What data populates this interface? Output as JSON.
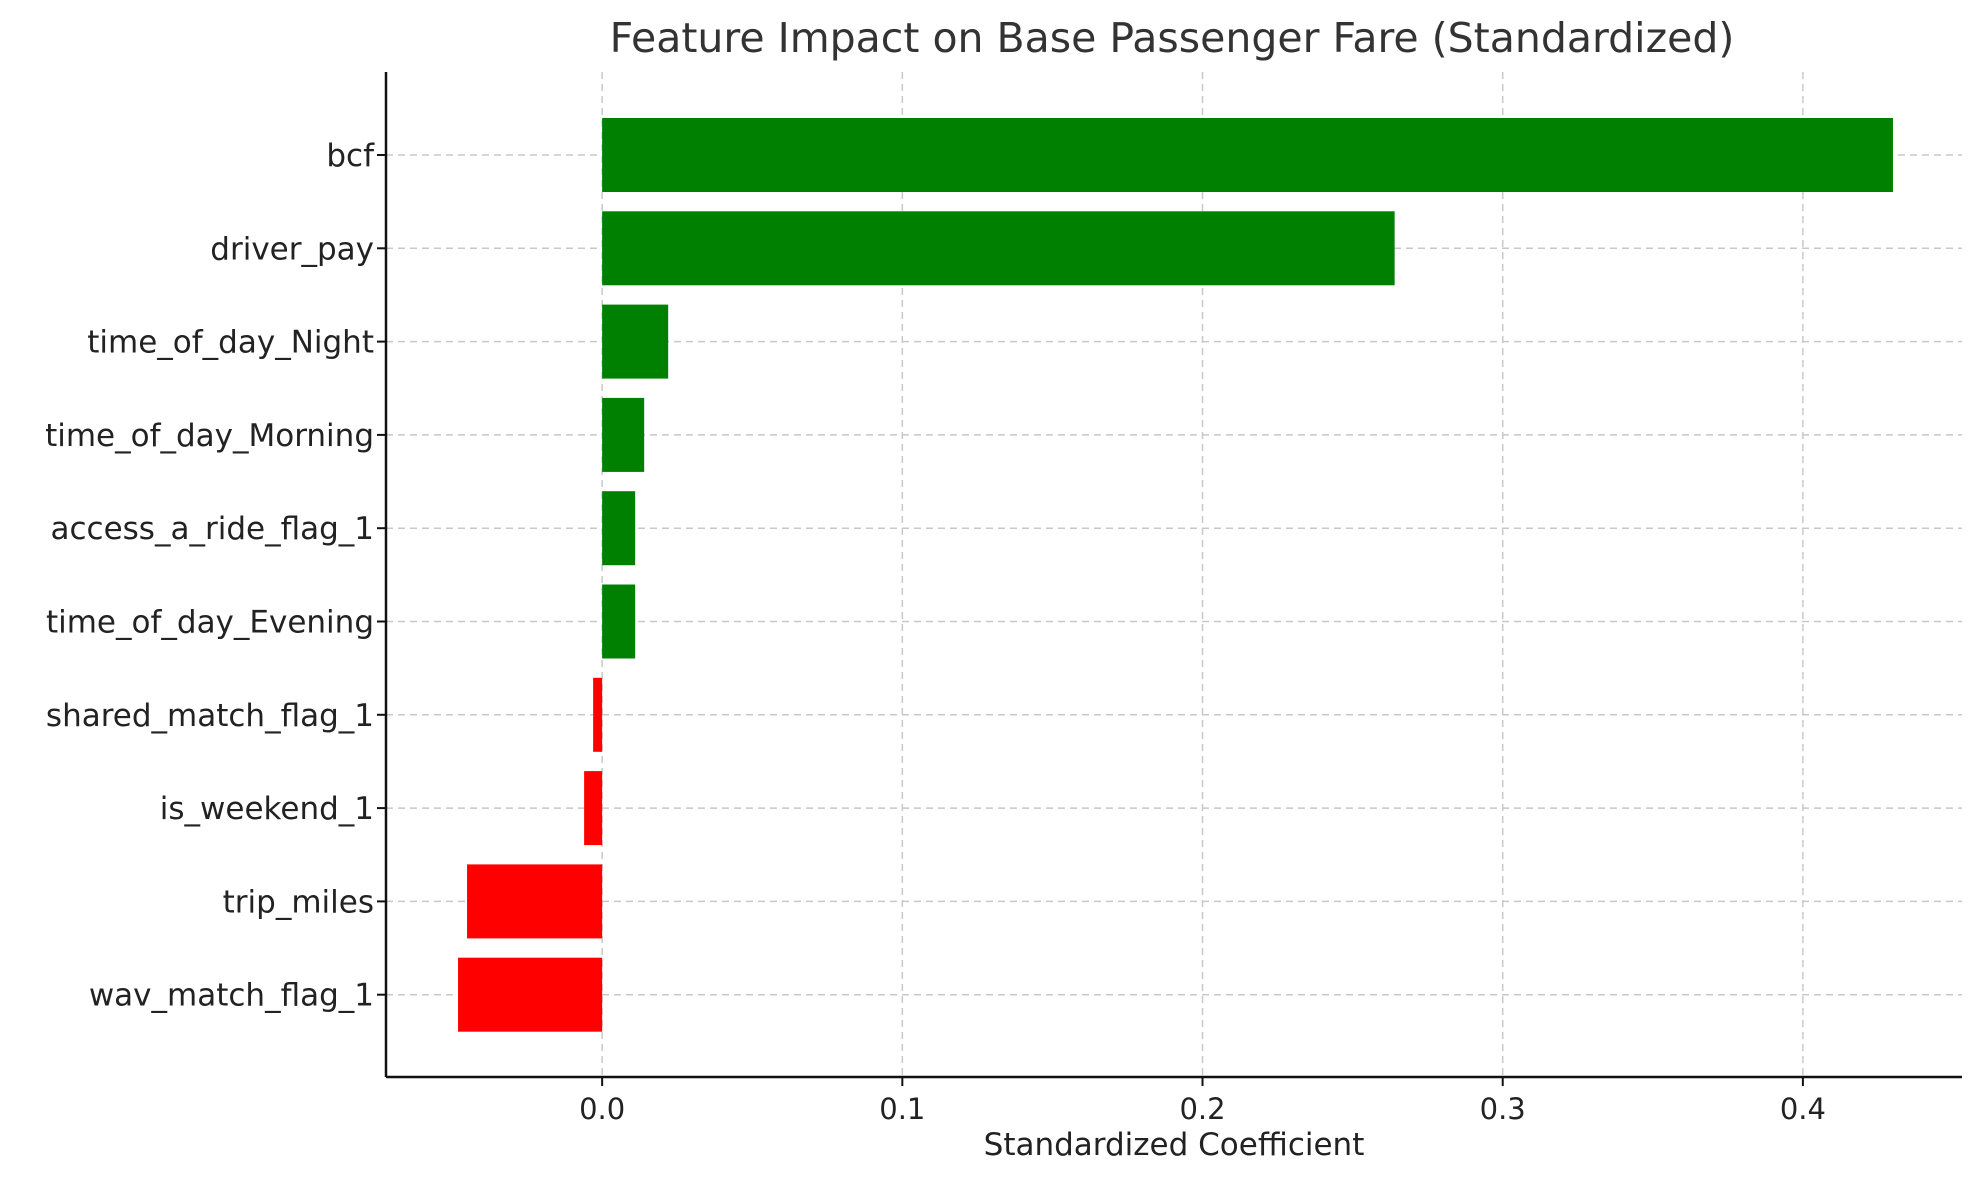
{
  "chart_data": {
    "type": "bar",
    "orientation": "horizontal",
    "title": "Feature Impact on Base Passenger Fare (Standardized)",
    "xlabel": "Standardized Coefficient",
    "ylabel": "",
    "categories": [
      "bcf",
      "driver_pay",
      "time_of_day_Night",
      "time_of_day_Morning",
      "access_a_ride_flag_1",
      "time_of_day_Evening",
      "shared_match_flag_1",
      "is_weekend_1",
      "trip_miles",
      "wav_match_flag_1"
    ],
    "values": [
      0.43,
      0.264,
      0.022,
      0.014,
      0.011,
      0.011,
      -0.003,
      -0.006,
      -0.045,
      -0.048
    ],
    "xlim": [
      -0.072,
      0.453
    ],
    "xticks": [
      0.0,
      0.1,
      0.2,
      0.3,
      0.4
    ],
    "xtick_labels": [
      "0.0",
      "0.1",
      "0.2",
      "0.3",
      "0.4"
    ],
    "grid": true,
    "colors": {
      "positive": "#008000",
      "negative": "#ff0000"
    }
  }
}
